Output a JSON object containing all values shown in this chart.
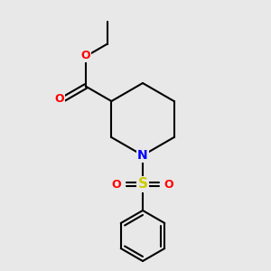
{
  "background_color": "#e8e8e8",
  "bond_color": "#000000",
  "bond_width": 1.5,
  "atom_colors": {
    "O": "#ff0000",
    "N": "#0000ff",
    "S": "#cccc00",
    "C": "#000000"
  },
  "figsize": [
    3.0,
    3.0
  ],
  "dpi": 100
}
